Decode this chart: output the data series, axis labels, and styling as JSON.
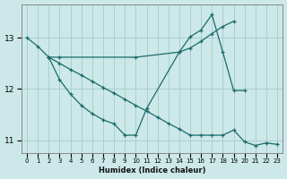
{
  "xlabel": "Humidex (Indice chaleur)",
  "bg_color": "#cce8e8",
  "grid_color": "#aacfcf",
  "line_color": "#1a6b6b",
  "line1_x": [
    0,
    1,
    2,
    3,
    10,
    14,
    15,
    16,
    17,
    18,
    19
  ],
  "line1_y": [
    13.0,
    12.83,
    12.62,
    12.62,
    12.62,
    12.72,
    12.8,
    12.93,
    13.08,
    13.22,
    13.32
  ],
  "line2_x": [
    2,
    3,
    4,
    5,
    6,
    7,
    8,
    9,
    10,
    11,
    14,
    15,
    16,
    17,
    18,
    19,
    20
  ],
  "line2_y": [
    12.62,
    12.18,
    11.9,
    11.68,
    11.52,
    11.4,
    11.32,
    11.1,
    11.1,
    11.62,
    12.72,
    13.02,
    13.15,
    13.45,
    12.72,
    11.97,
    11.97
  ],
  "line3_x": [
    2,
    3,
    4,
    5,
    6,
    7,
    8,
    9,
    10,
    11,
    12,
    13,
    14,
    15,
    16,
    17,
    18,
    19,
    20,
    21,
    22,
    23
  ],
  "line3_y": [
    12.62,
    12.5,
    12.38,
    12.27,
    12.15,
    12.03,
    11.92,
    11.8,
    11.68,
    11.57,
    11.45,
    11.33,
    11.22,
    11.1,
    11.1,
    11.1,
    11.1,
    11.2,
    10.97,
    10.9,
    10.95,
    10.92
  ],
  "xlim": [
    -0.5,
    23.5
  ],
  "ylim": [
    10.75,
    13.65
  ],
  "yticks": [
    11,
    12,
    13
  ],
  "xticks": [
    0,
    1,
    2,
    3,
    4,
    5,
    6,
    7,
    8,
    9,
    10,
    11,
    12,
    13,
    14,
    15,
    16,
    17,
    18,
    19,
    20,
    21,
    22,
    23
  ]
}
